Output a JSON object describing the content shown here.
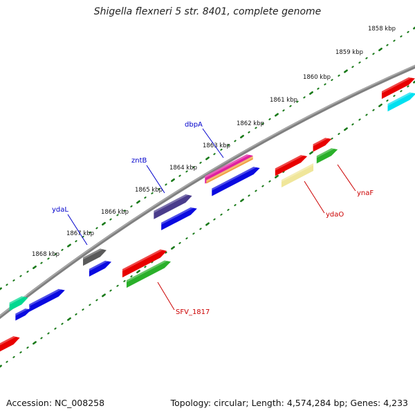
{
  "title": "Shigella flexneri 5 str. 8401, complete genome",
  "footer": {
    "accession": "Accession: NC_008258",
    "summary": "Topology: circular; Length: 4,574,284 bp; Genes: 4,233"
  },
  "ticks": [
    {
      "label": "1858 kbp"
    },
    {
      "label": "1859 kbp"
    },
    {
      "label": "1860 kbp"
    },
    {
      "label": "1861 kbp"
    },
    {
      "label": "1862 kbp"
    },
    {
      "label": "1863 kbp"
    },
    {
      "label": "1864 kbp"
    },
    {
      "label": "1865 kbp"
    },
    {
      "label": "1866 kbp"
    },
    {
      "label": "1867 kbp"
    },
    {
      "label": "1868 kbp"
    }
  ],
  "gene_labels": [
    {
      "text": "dbpA",
      "color": "#0000cc"
    },
    {
      "text": "zntB",
      "color": "#0000cc"
    },
    {
      "text": "ydaL",
      "color": "#0000cc"
    },
    {
      "text": "ydaO",
      "color": "#cc0000"
    },
    {
      "text": "ynaF",
      "color": "#cc0000"
    },
    {
      "text": "SFV_1817",
      "color": "#cc0000"
    }
  ],
  "colors": {
    "backbone": "#808080",
    "tick": "#1a7a1a",
    "red": "#e80000",
    "blue": "#0a0ae0",
    "green": "#2ab02a",
    "navy": "#4a3c8c",
    "gray": "#5a5a5a",
    "yellow": "#f0e69a",
    "cyan": "#00e0f0",
    "teal": "#00d890",
    "magenta": "#e020a0",
    "orange": "#f0a040"
  }
}
